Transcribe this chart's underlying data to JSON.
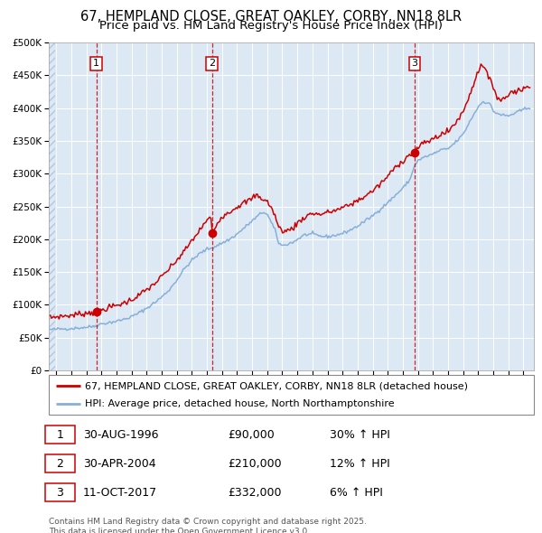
{
  "title1": "67, HEMPLAND CLOSE, GREAT OAKLEY, CORBY, NN18 8LR",
  "title2": "Price paid vs. HM Land Registry's House Price Index (HPI)",
  "legend_red": "67, HEMPLAND CLOSE, GREAT OAKLEY, CORBY, NN18 8LR (detached house)",
  "legend_blue": "HPI: Average price, detached house, North Northamptonshire",
  "footer": "Contains HM Land Registry data © Crown copyright and database right 2025.\nThis data is licensed under the Open Government Licence v3.0.",
  "sale_points": [
    {
      "label": "1",
      "date_str": "30-AUG-1996",
      "price": 90000,
      "hpi_pct": "30% ↑ HPI",
      "date_x": 1996.66
    },
    {
      "label": "2",
      "date_str": "30-APR-2004",
      "price": 210000,
      "hpi_pct": "12% ↑ HPI",
      "date_x": 2004.33
    },
    {
      "label": "3",
      "date_str": "11-OCT-2017",
      "price": 332000,
      "hpi_pct": "6% ↑ HPI",
      "date_x": 2017.78
    }
  ],
  "ylim": [
    0,
    500000
  ],
  "xlim_start": 1993.5,
  "xlim_end": 2025.7,
  "bg_color": "#ffffff",
  "plot_bg_color": "#dce9f5",
  "grid_color": "#ffffff",
  "red_color": "#cc0000",
  "blue_color": "#87afd7",
  "hatch_color": "#c8d8e8",
  "title_fontsize": 10.5,
  "subtitle_fontsize": 9.5,
  "tick_fontsize": 7.5,
  "legend_fontsize": 8,
  "table_fontsize": 9,
  "footer_fontsize": 6.5
}
